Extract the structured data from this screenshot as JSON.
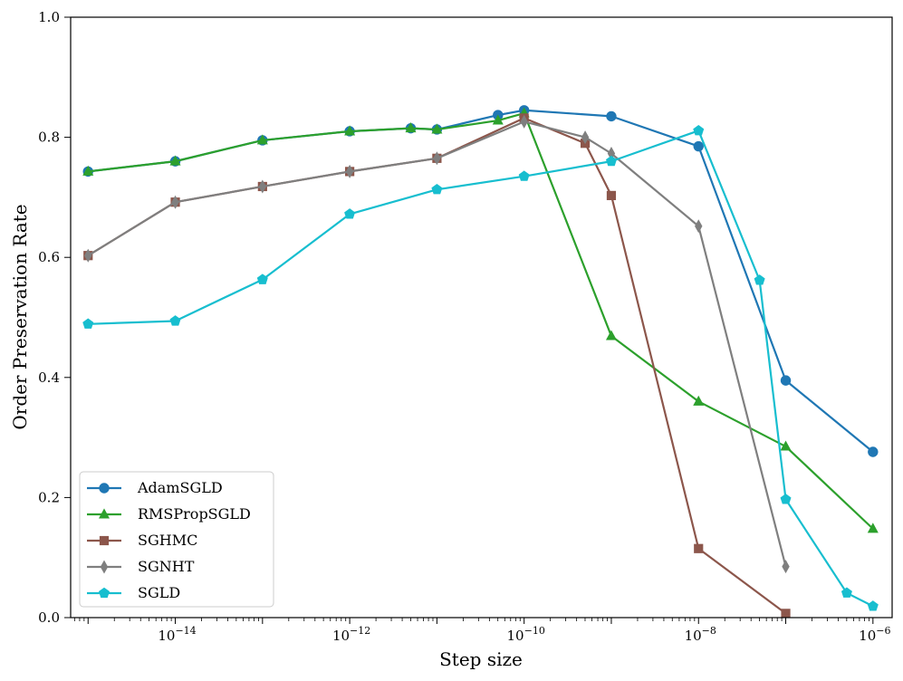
{
  "chart_data": {
    "type": "line",
    "title": "",
    "xlabel": "Step size",
    "ylabel": "Order Preservation Rate",
    "xscale": "log",
    "xlim_exp": [
      -15.2,
      -5.78
    ],
    "ylim": [
      0,
      1
    ],
    "x_tick_exponents": [
      -14,
      -12,
      -10,
      -8,
      -6
    ],
    "x_tick_labels": [
      "−14",
      "−12",
      "−10",
      "−8",
      "−6"
    ],
    "x_tick_base": "10",
    "y_ticks": [
      0.0,
      0.2,
      0.4,
      0.6,
      0.8,
      1.0
    ],
    "y_tick_labels": [
      "0.0",
      "0.2",
      "0.4",
      "0.6",
      "0.8",
      "1.0"
    ],
    "grid": false,
    "legend_position": "lower-left",
    "series": [
      {
        "name": "AdamSGLD",
        "color": "#1f77b4",
        "marker": "circle",
        "x_exp": [
          -15,
          -14,
          -13,
          -12,
          -11.3,
          -11,
          -10.3,
          -10,
          -9,
          -8,
          -7,
          -6
        ],
        "y": [
          0.743,
          0.76,
          0.795,
          0.81,
          0.815,
          0.813,
          0.837,
          0.845,
          0.835,
          0.785,
          0.395,
          0.276
        ]
      },
      {
        "name": "RMSPropSGLD",
        "color": "#2ca02c",
        "marker": "triangle",
        "x_exp": [
          -15,
          -14,
          -13,
          -12,
          -11.3,
          -11,
          -10.3,
          -10,
          -9,
          -8,
          -7,
          -6
        ],
        "y": [
          0.743,
          0.76,
          0.795,
          0.81,
          0.815,
          0.813,
          0.828,
          0.84,
          0.469,
          0.36,
          0.285,
          0.148
        ]
      },
      {
        "name": "SGHMC",
        "color": "#8c564b",
        "marker": "square",
        "x_exp": [
          -15,
          -14,
          -13,
          -12,
          -11,
          -10,
          -9.3,
          -9,
          -8,
          -7
        ],
        "y": [
          0.603,
          0.692,
          0.718,
          0.743,
          0.765,
          0.832,
          0.79,
          0.703,
          0.115,
          0.007
        ]
      },
      {
        "name": "SGNHT",
        "color": "#7f7f7f",
        "marker": "diamond",
        "x_exp": [
          -15,
          -14,
          -13,
          -12,
          -11,
          -10,
          -9.3,
          -9,
          -8,
          -7
        ],
        "y": [
          0.603,
          0.692,
          0.718,
          0.743,
          0.765,
          0.826,
          0.8,
          0.773,
          0.652,
          0.085
        ]
      },
      {
        "name": "SGLD",
        "color": "#17becf",
        "marker": "pentagon",
        "x_exp": [
          -15,
          -14,
          -13,
          -12,
          -11,
          -10,
          -9,
          -8,
          -7.3,
          -7,
          -6.3,
          -6
        ],
        "y": [
          0.489,
          0.494,
          0.563,
          0.672,
          0.713,
          0.735,
          0.76,
          0.811,
          0.562,
          0.197,
          0.041,
          0.019
        ]
      }
    ]
  }
}
